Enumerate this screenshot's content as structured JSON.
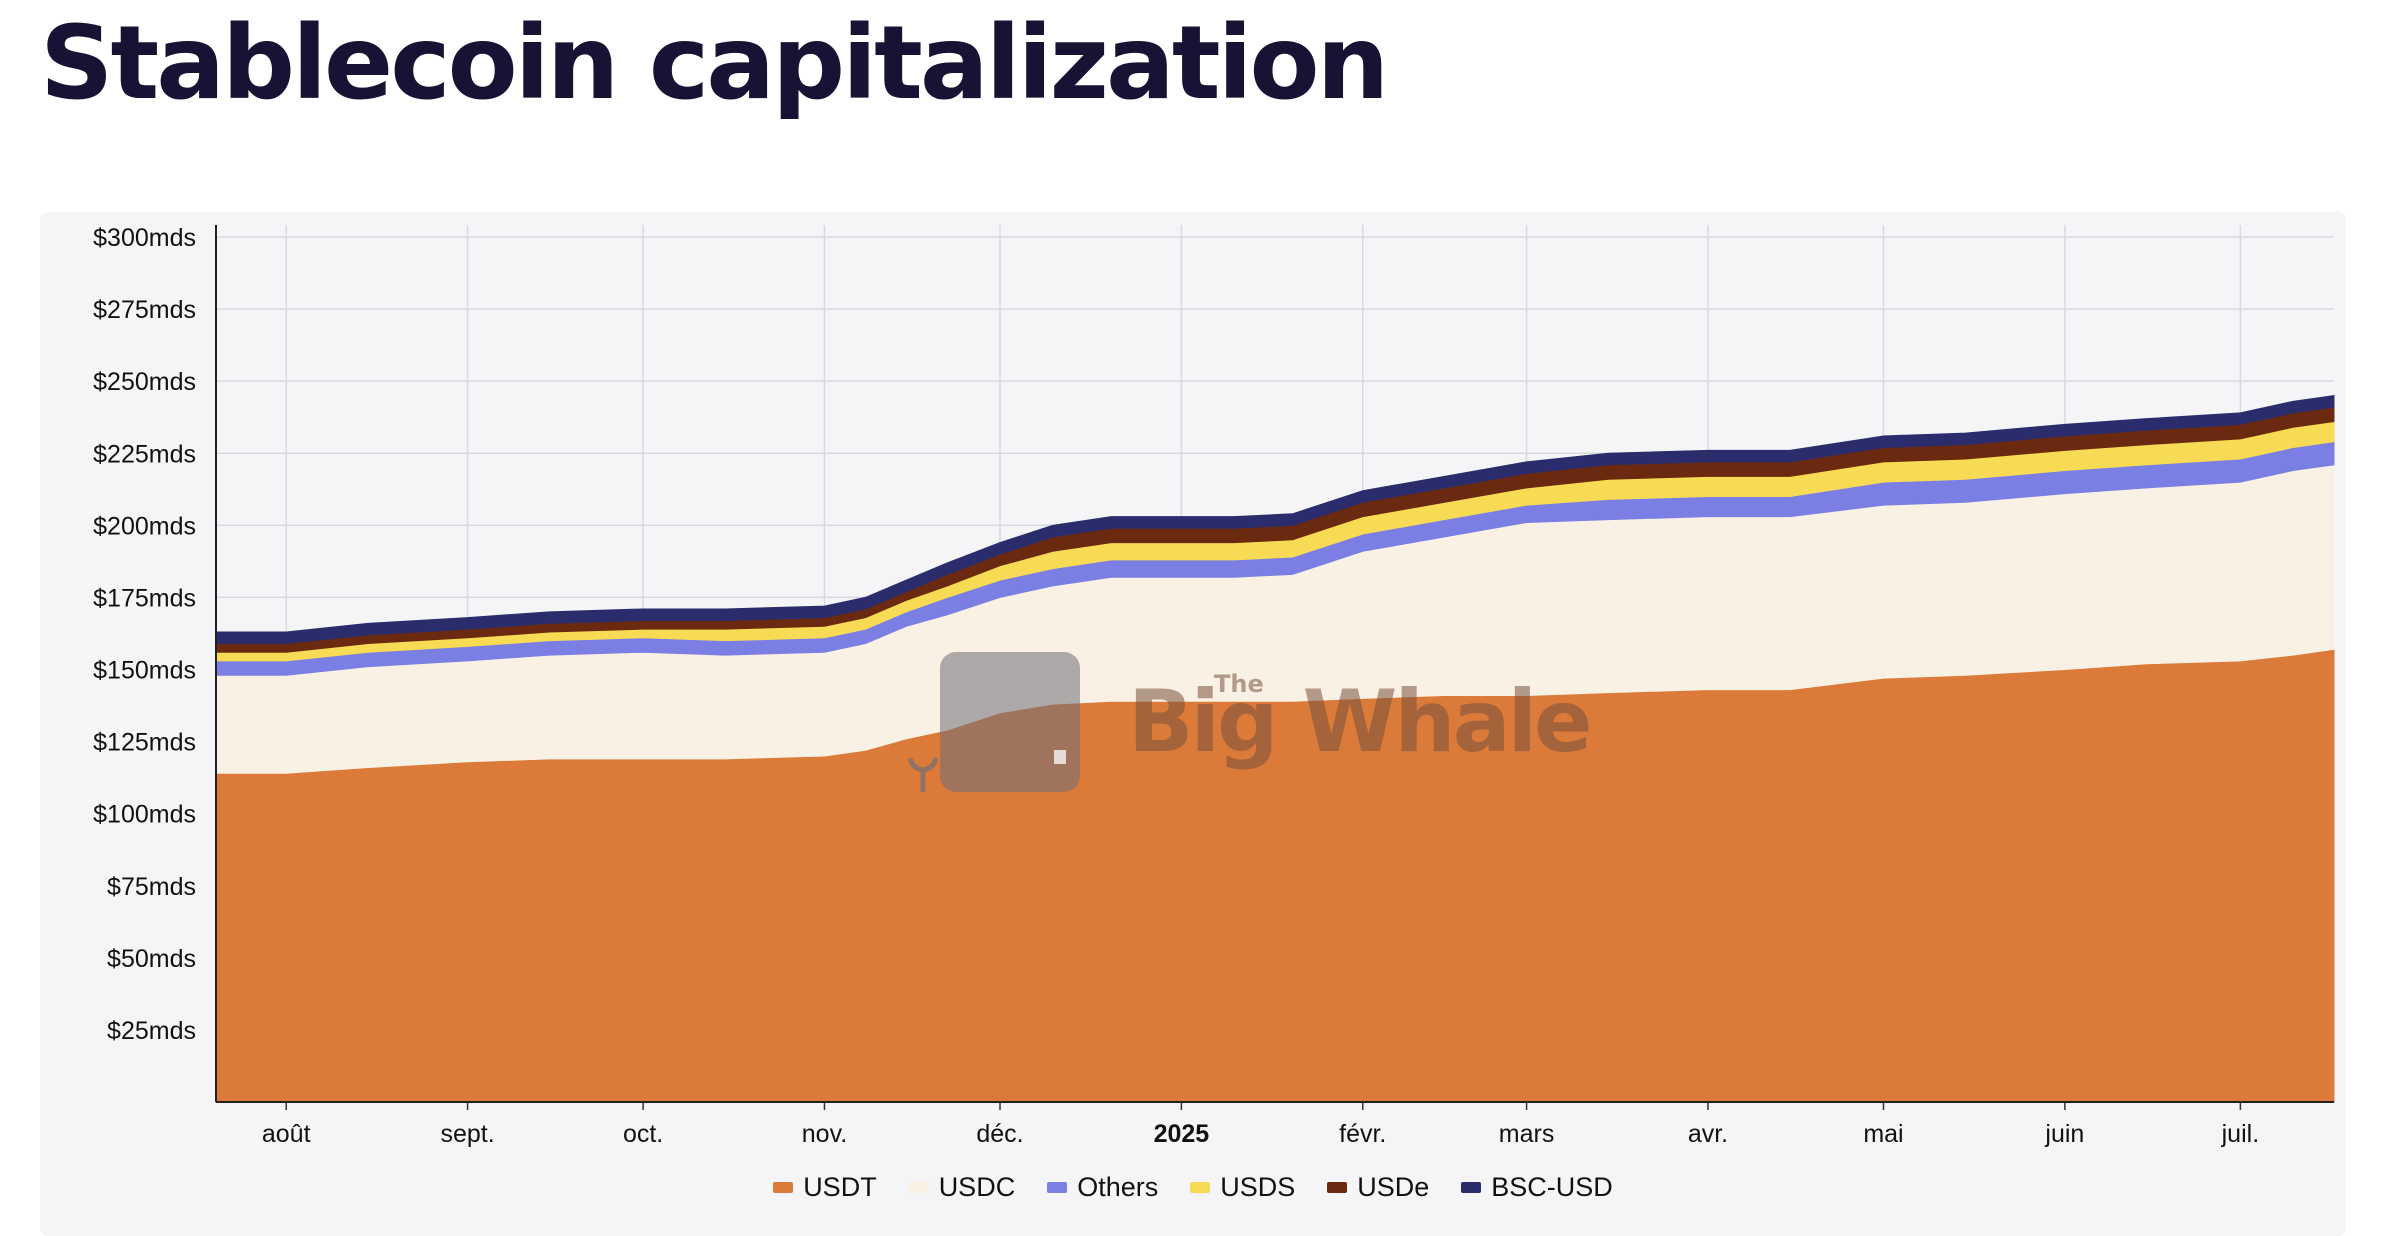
{
  "page": {
    "title": "Stablecoin capitalization"
  },
  "watermark": {
    "the": "The",
    "name": "Big Whale"
  },
  "colors": {
    "USDT": "#dc7a3a",
    "USDC": "#faf1e5",
    "Others": "#7b7fe4",
    "USDS": "#f8db54",
    "USDe": "#6b2a10",
    "BSC-USD": "#2b2c6c",
    "grid": "#d8d8de",
    "background": "#f5f5f8"
  },
  "chart_data": {
    "type": "area",
    "stacked": true,
    "title": "Stablecoin capitalization",
    "ylim": [
      0,
      300
    ],
    "y_unit": "mds (billion USD)",
    "y_ticks": [
      {
        "value": 25,
        "label": "$25mds"
      },
      {
        "value": 50,
        "label": "$50mds"
      },
      {
        "value": 75,
        "label": "$75mds"
      },
      {
        "value": 100,
        "label": "$100mds"
      },
      {
        "value": 125,
        "label": "$125mds"
      },
      {
        "value": 150,
        "label": "$150mds"
      },
      {
        "value": 175,
        "label": "$175mds"
      },
      {
        "value": 200,
        "label": "$200mds"
      },
      {
        "value": 225,
        "label": "$225mds"
      },
      {
        "value": 250,
        "label": "$250mds"
      },
      {
        "value": 275,
        "label": "$275mds"
      },
      {
        "value": 300,
        "label": "$300mds"
      }
    ],
    "x_ticks": [
      {
        "date": "2024-08-01",
        "label": "août",
        "bold": false
      },
      {
        "date": "2024-09-01",
        "label": "sept.",
        "bold": false
      },
      {
        "date": "2024-10-01",
        "label": "oct.",
        "bold": false
      },
      {
        "date": "2024-11-01",
        "label": "nov.",
        "bold": false
      },
      {
        "date": "2024-12-01",
        "label": "déc.",
        "bold": false
      },
      {
        "date": "2025-01-01",
        "label": "2025",
        "bold": true
      },
      {
        "date": "2025-02-01",
        "label": "févr.",
        "bold": false
      },
      {
        "date": "2025-03-01",
        "label": "mars",
        "bold": false
      },
      {
        "date": "2025-04-01",
        "label": "avr.",
        "bold": false
      },
      {
        "date": "2025-05-01",
        "label": "mai",
        "bold": false
      },
      {
        "date": "2025-06-01",
        "label": "juin",
        "bold": false
      },
      {
        "date": "2025-07-01",
        "label": "juil.",
        "bold": false
      }
    ],
    "xlim": [
      "2024-07-20",
      "2025-07-17"
    ],
    "grid": true,
    "legend_position": "bottom-center",
    "x": [
      "2024-07-20",
      "2024-08-01",
      "2024-08-15",
      "2024-09-01",
      "2024-09-15",
      "2024-10-01",
      "2024-10-15",
      "2024-11-01",
      "2024-11-08",
      "2024-11-15",
      "2024-11-22",
      "2024-12-01",
      "2024-12-10",
      "2024-12-20",
      "2025-01-01",
      "2025-01-10",
      "2025-01-20",
      "2025-02-01",
      "2025-02-15",
      "2025-03-01",
      "2025-03-15",
      "2025-04-01",
      "2025-04-15",
      "2025-05-01",
      "2025-05-15",
      "2025-06-01",
      "2025-06-15",
      "2025-07-01",
      "2025-07-10",
      "2025-07-17"
    ],
    "series": [
      {
        "name": "USDT",
        "values": [
          114,
          114,
          116,
          118,
          119,
          119,
          119,
          120,
          122,
          126,
          129,
          135,
          138,
          139,
          139,
          139,
          139,
          140,
          141,
          141,
          142,
          143,
          143,
          147,
          148,
          150,
          152,
          153,
          155,
          157
        ]
      },
      {
        "name": "USDC",
        "values": [
          34,
          34,
          35,
          35,
          36,
          37,
          36,
          36,
          37,
          39,
          40,
          40,
          41,
          43,
          43,
          43,
          44,
          51,
          55,
          60,
          60,
          60,
          60,
          60,
          60,
          61,
          61,
          62,
          64,
          64
        ]
      },
      {
        "name": "Others",
        "values": [
          5,
          5,
          5,
          5,
          5,
          5,
          5,
          5,
          5,
          5,
          6,
          6,
          6,
          6,
          6,
          6,
          6,
          6,
          6,
          6,
          7,
          7,
          7,
          8,
          8,
          8,
          8,
          8,
          8,
          8
        ]
      },
      {
        "name": "USDS",
        "values": [
          3,
          3,
          3,
          3,
          3,
          3,
          4,
          4,
          4,
          4,
          4,
          5,
          6,
          6,
          6,
          6,
          6,
          6,
          6,
          6,
          7,
          7,
          7,
          7,
          7,
          7,
          7,
          7,
          7,
          7
        ]
      },
      {
        "name": "USDe",
        "values": [
          3,
          3,
          3,
          3,
          3,
          3,
          3,
          3,
          3,
          3,
          4,
          4,
          5,
          5,
          5,
          5,
          5,
          5,
          5,
          5,
          5,
          5,
          5,
          5,
          5,
          5,
          5,
          5,
          5,
          5
        ]
      },
      {
        "name": "BSC-USD",
        "values": [
          4,
          4,
          4,
          4,
          4,
          4,
          4,
          4,
          4,
          4,
          4,
          4,
          4,
          4,
          4,
          4,
          4,
          4,
          4,
          4,
          4,
          4,
          4,
          4,
          4,
          4,
          4,
          4,
          4,
          4
        ]
      }
    ]
  }
}
